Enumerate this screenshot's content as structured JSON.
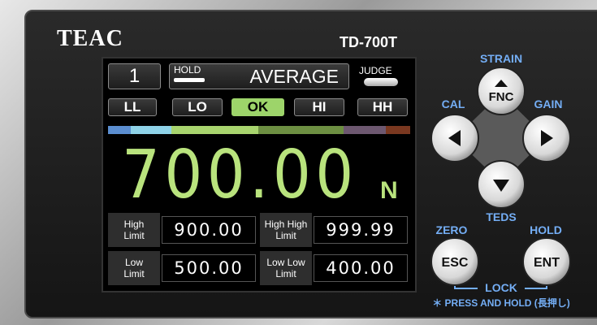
{
  "header": {
    "brand": "TEAC",
    "model": "TD-700T"
  },
  "display": {
    "channel": "1",
    "hold": "HOLD",
    "mode": "AVERAGE",
    "judge": "JUDGE",
    "judgments": [
      "LL",
      "LO",
      "OK",
      "HI",
      "HH"
    ],
    "reading": "700.00",
    "unit": "N",
    "limits": [
      {
        "label": [
          "High",
          "Limit"
        ],
        "value": "900.00"
      },
      {
        "label": [
          "High High",
          "Limit"
        ],
        "value": "999.99"
      },
      {
        "label": [
          "Low",
          "Limit"
        ],
        "value": "500.00"
      },
      {
        "label": [
          "Low Low",
          "Limit"
        ],
        "value": "400.00"
      }
    ]
  },
  "keys": {
    "strain": "STRAIN",
    "fnc": "FNC",
    "cal": "CAL",
    "gain": "GAIN",
    "teds": "TEDS",
    "zero": "ZERO",
    "hold": "HOLD",
    "esc": "ESC",
    "ent": "ENT",
    "lock": "LOCK",
    "note": "＊ PRESS AND HOLD (長押し)"
  }
}
